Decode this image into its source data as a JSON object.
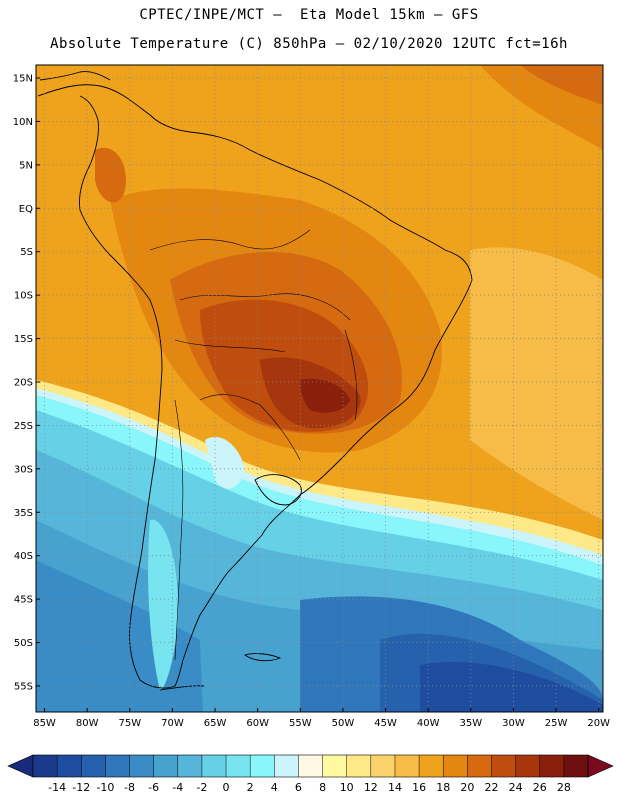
{
  "title_line1": "CPTEC/INPE/MCT –  Eta Model 15km – GFS",
  "title_line2": "Absolute Temperature (C) 850hPa – 02/10/2020 12UTC fct=16h",
  "lat_labels": [
    "15N",
    "10N",
    "5N",
    "EQ",
    "5S",
    "10S",
    "15S",
    "20S",
    "25S",
    "30S",
    "35S",
    "40S",
    "45S",
    "50S",
    "55S"
  ],
  "lat_values": [
    15,
    10,
    5,
    0,
    -5,
    -10,
    -15,
    -20,
    -25,
    -30,
    -35,
    -40,
    -45,
    -50,
    -55
  ],
  "lon_labels": [
    "85W",
    "80W",
    "75W",
    "70W",
    "65W",
    "60W",
    "55W",
    "50W",
    "45W",
    "40W",
    "35W",
    "30W",
    "25W",
    "20W"
  ],
  "lon_values": [
    -85,
    -80,
    -75,
    -70,
    -65,
    -60,
    -55,
    -50,
    -45,
    -40,
    -35,
    -30,
    -25,
    -20
  ],
  "map_extent": {
    "lon_min": -86,
    "lon_max": -19.5,
    "lat_min": -58,
    "lat_max": 16.5
  },
  "colorbar": {
    "labels": [
      "-14",
      "-12",
      "-10",
      "-8",
      "-6",
      "-4",
      "-2",
      "0",
      "2",
      "4",
      "6",
      "8",
      "10",
      "12",
      "14",
      "16",
      "18",
      "20",
      "22",
      "24",
      "26",
      "28"
    ],
    "colors": [
      "#1a3b8c",
      "#1e4c9e",
      "#2661ad",
      "#2f76bb",
      "#3a8cc6",
      "#48a2d0",
      "#55b6da",
      "#66d0e6",
      "#77e4f0",
      "#88f6fb",
      "#cbf4fb",
      "#fff8e4",
      "#fffaa0",
      "#fde987",
      "#fbd36a",
      "#f7bb47",
      "#efa21c",
      "#e48710",
      "#d56a10",
      "#bf4e0e",
      "#a5360d",
      "#8a200c",
      "#6e1010"
    ],
    "low_arrow_color": "#1a2a7a",
    "high_arrow_color": "#7a0a1e"
  }
}
